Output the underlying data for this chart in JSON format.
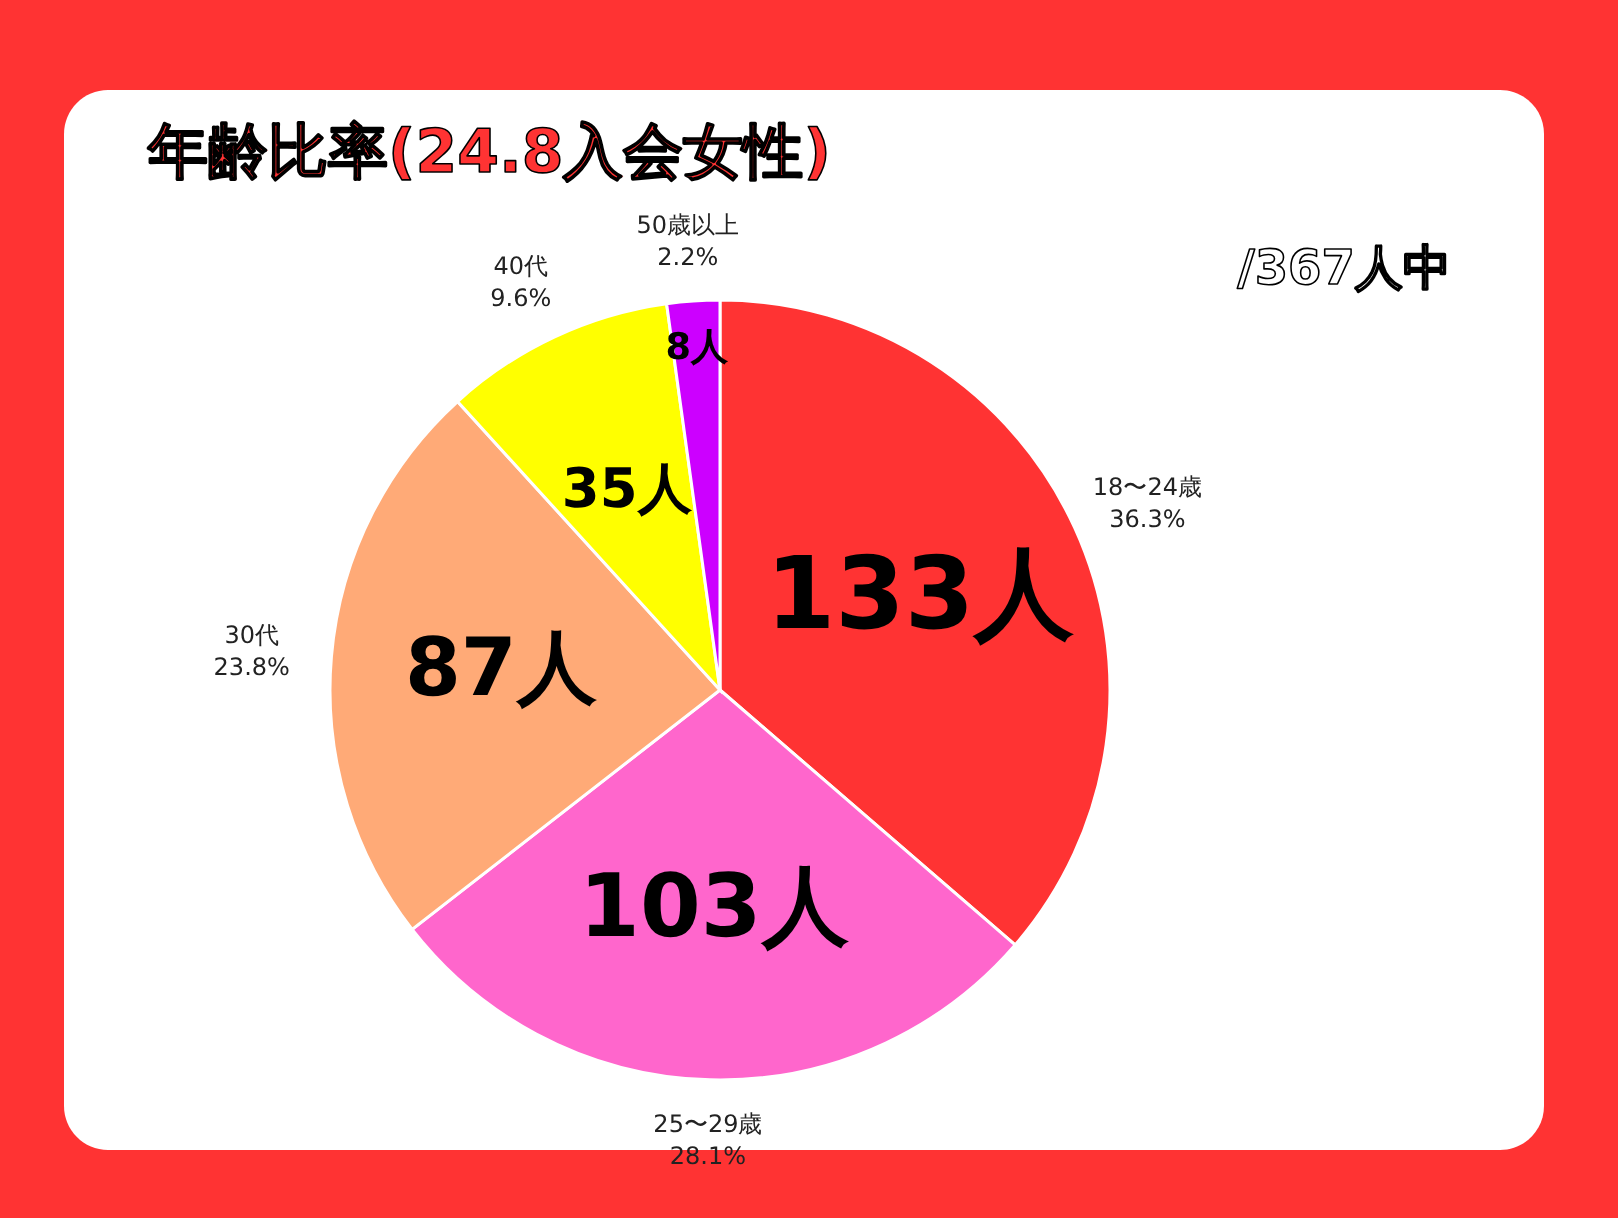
{
  "chart_data": {
    "type": "pie",
    "title": "年齢比率(24.8入会女性)",
    "subtitle": "/367人中",
    "categories": [
      "18〜24歳",
      "25〜29歳",
      "30代",
      "40代",
      "50歳以上"
    ],
    "values": [
      133,
      103,
      87,
      35,
      8
    ],
    "colors": [
      "#ff3333",
      "#ff66cc",
      "#ffaa77",
      "#ffff00",
      "#cc00ff"
    ],
    "value_labels": [
      "133人",
      "103人",
      "87人",
      "35人",
      "8人"
    ],
    "annotations": [
      {
        "text": "36.3%",
        "x": "18〜24歳"
      },
      {
        "text": "28.1%",
        "x": "25〜29歳"
      },
      {
        "text": "23.8%",
        "x": "30代"
      },
      {
        "text": "9.6%",
        "x": "40代"
      },
      {
        "text": "2.2%",
        "x": "50歳以上"
      }
    ],
    "legend": false
  }
}
